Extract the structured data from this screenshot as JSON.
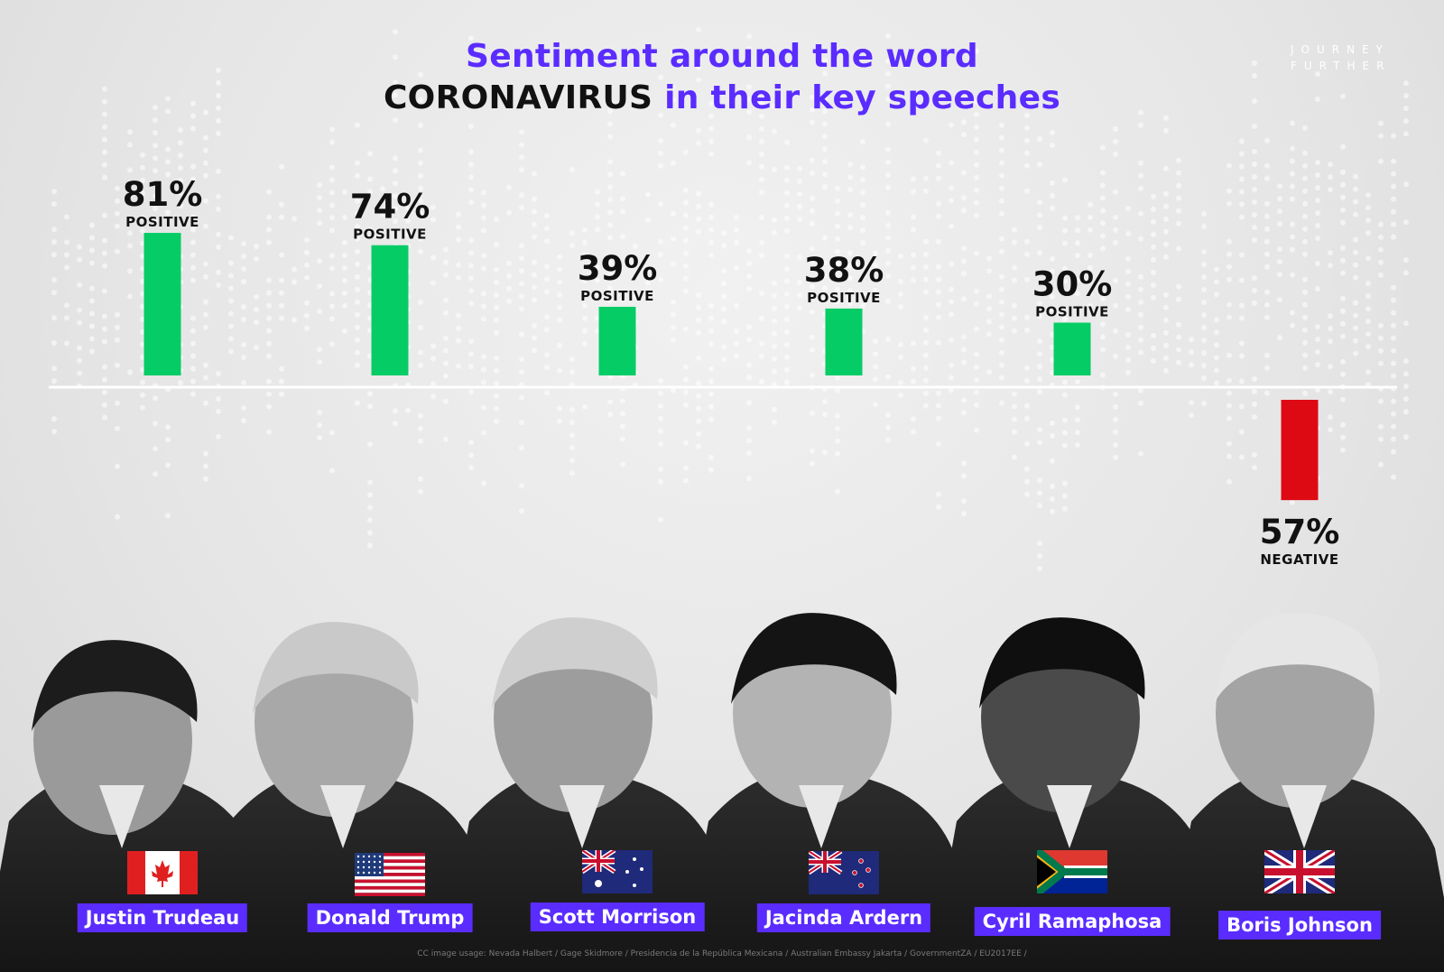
{
  "title": {
    "line1": "Sentiment around the word",
    "line2_emphasis": "CORONAVIRUS",
    "line2_rest": " in their key speeches"
  },
  "logo": {
    "line1": "JOURNEY",
    "line2": "FURTHER"
  },
  "colors": {
    "positive": "#06cc66",
    "negative": "#dd0a14",
    "accent": "#5a2cff",
    "baseline": "#ffffff"
  },
  "chart_data": {
    "type": "bar",
    "title": "Sentiment around the word CORONAVIRUS in their key speeches",
    "categories": [
      "Justin Trudeau",
      "Donald Trump",
      "Scott Morrison",
      "Jacinda Ardern",
      "Cyril Ramaphosa",
      "Boris Johnson"
    ],
    "values": [
      81,
      74,
      39,
      38,
      30,
      -57
    ],
    "value_labels": [
      "81%",
      "74%",
      "39%",
      "38%",
      "30%",
      "57%"
    ],
    "sentiment": [
      "POSITIVE",
      "POSITIVE",
      "POSITIVE",
      "POSITIVE",
      "POSITIVE",
      "NEGATIVE"
    ],
    "ylim": [
      -100,
      100
    ],
    "grid": false
  },
  "leaders": [
    {
      "name": "Justin Trudeau",
      "flag": "canada-flag-icon"
    },
    {
      "name": "Donald Trump",
      "flag": "usa-flag-icon"
    },
    {
      "name": "Scott Morrison",
      "flag": "australia-flag-icon"
    },
    {
      "name": "Jacinda Ardern",
      "flag": "new-zealand-flag-icon"
    },
    {
      "name": "Cyril Ramaphosa",
      "flag": "south-africa-flag-icon"
    },
    {
      "name": "Boris Johnson",
      "flag": "uk-flag-icon"
    }
  ],
  "credit": "CC image usage: Nevada Halbert / Gage Skidmore / Presidencia de la República Mexicana / Australian Embassy Jakarta / GovernmentZA / EU2017EE /"
}
